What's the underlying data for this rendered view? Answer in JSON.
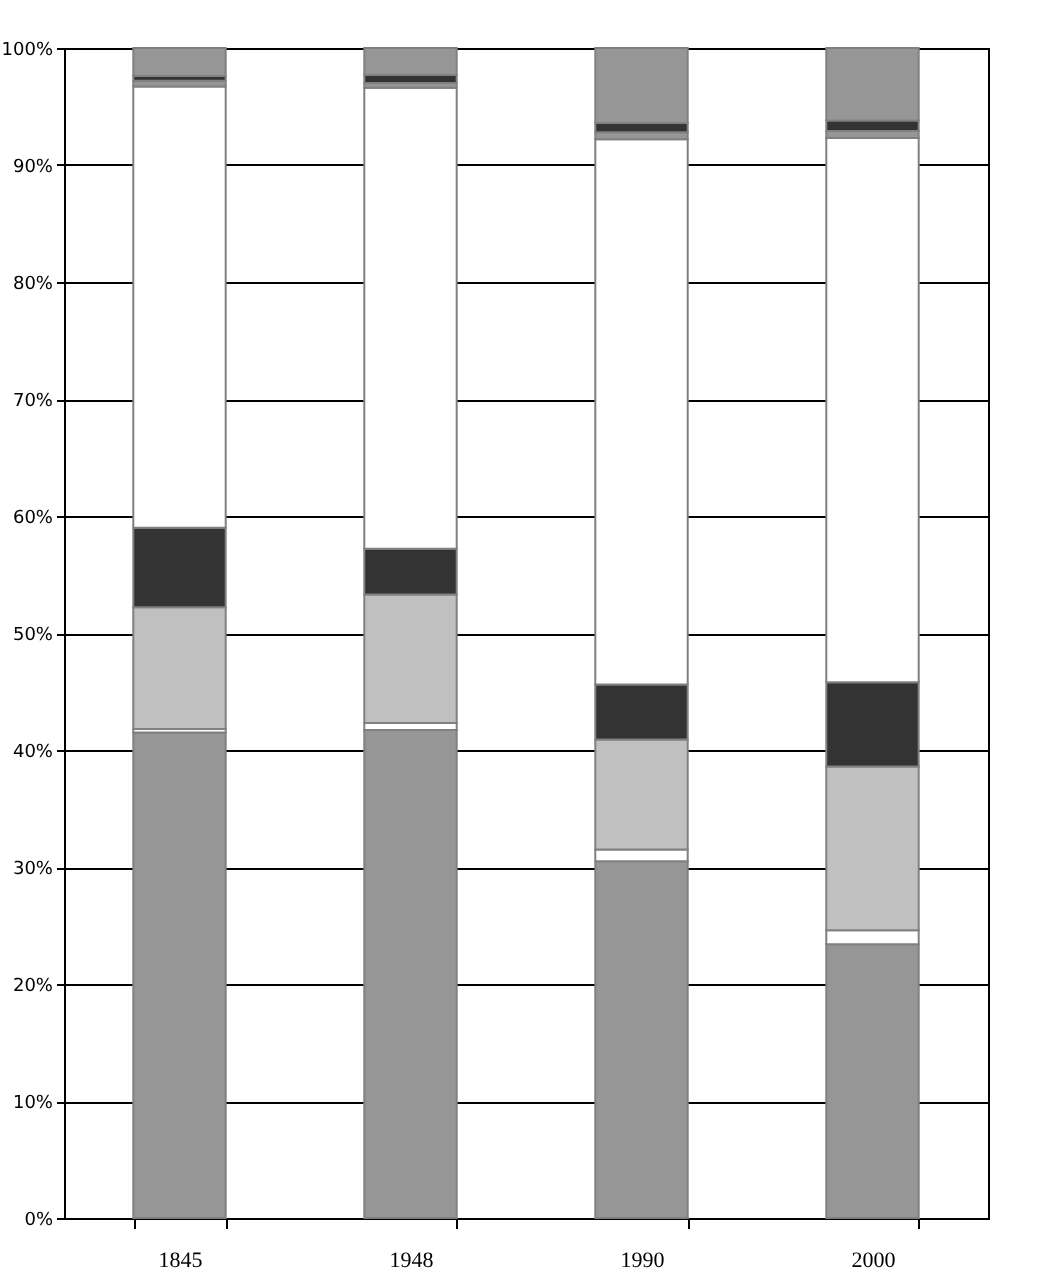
{
  "chart_data": {
    "type": "bar",
    "stacked": true,
    "categories": [
      "1845",
      "1948",
      "1990",
      "2000"
    ],
    "series": [
      {
        "color": "#969696",
        "values": [
          41.5,
          41.7,
          30.5,
          23.4
        ]
      },
      {
        "color": "#ffffff",
        "values": [
          0.3,
          0.6,
          1.0,
          1.2
        ]
      },
      {
        "color": "#c0c0c0",
        "values": [
          10.4,
          11.0,
          9.4,
          14.0
        ]
      },
      {
        "color": "#333333",
        "values": [
          6.8,
          3.9,
          4.7,
          7.2
        ]
      },
      {
        "color": "#ffffff",
        "values": [
          37.7,
          39.4,
          46.6,
          46.5
        ]
      },
      {
        "color": "#969696",
        "values": [
          0.5,
          0.4,
          0.6,
          0.6
        ]
      },
      {
        "color": "#333333",
        "values": [
          0.4,
          0.7,
          0.8,
          0.9
        ]
      },
      {
        "color": "#969696",
        "values": [
          2.4,
          2.3,
          6.4,
          6.2
        ]
      }
    ],
    "ylim": [
      0,
      100
    ],
    "yticks": [
      {
        "value": 0,
        "label": "0%"
      },
      {
        "value": 10,
        "label": "10%"
      },
      {
        "value": 20,
        "label": "20%"
      },
      {
        "value": 30,
        "label": "30%"
      },
      {
        "value": 40,
        "label": "40%"
      },
      {
        "value": 50,
        "label": "50%"
      },
      {
        "value": 60,
        "label": "60%"
      },
      {
        "value": 70,
        "label": "70%"
      },
      {
        "value": 80,
        "label": "80%"
      },
      {
        "value": 90,
        "label": "90%"
      },
      {
        "value": 100,
        "label": "100%"
      }
    ],
    "grid": "y",
    "legend": false
  }
}
